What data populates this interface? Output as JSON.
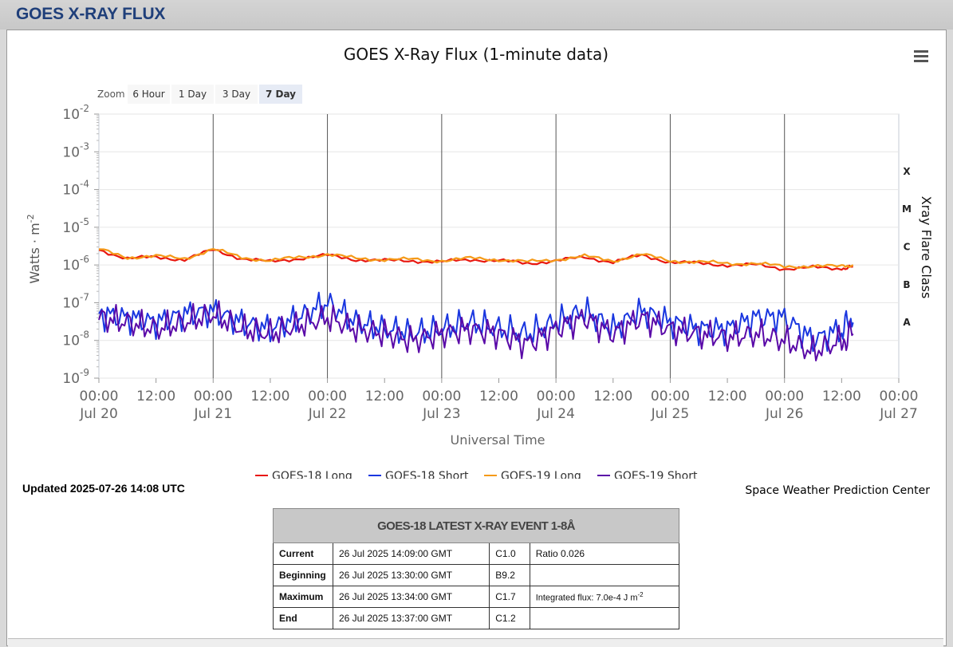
{
  "page": {
    "header_title": "GOES X-RAY FLUX"
  },
  "chart_data": {
    "type": "line",
    "title": "GOES X-Ray Flux (1-minute data)",
    "xlabel": "Universal Time",
    "ylabel": "Watts · m",
    "ylabel_sup": "-2",
    "right_label": "Xray Flare Class",
    "y_scale": "log",
    "ylim": [
      1e-09,
      0.01
    ],
    "xlim": [
      "2025-07-20 00:00",
      "2025-07-27 00:00"
    ],
    "y_ticks": [
      {
        "base": "10",
        "exp": "-2"
      },
      {
        "base": "10",
        "exp": "-3"
      },
      {
        "base": "10",
        "exp": "-4"
      },
      {
        "base": "10",
        "exp": "-5"
      },
      {
        "base": "10",
        "exp": "-6"
      },
      {
        "base": "10",
        "exp": "-7"
      },
      {
        "base": "10",
        "exp": "-8"
      },
      {
        "base": "10",
        "exp": "-9"
      }
    ],
    "x_ticks": [
      {
        "time": "00:00",
        "date": "Jul 20"
      },
      {
        "time": "12:00",
        "date": ""
      },
      {
        "time": "00:00",
        "date": "Jul 21"
      },
      {
        "time": "12:00",
        "date": ""
      },
      {
        "time": "00:00",
        "date": "Jul 22"
      },
      {
        "time": "12:00",
        "date": ""
      },
      {
        "time": "00:00",
        "date": "Jul 23"
      },
      {
        "time": "12:00",
        "date": ""
      },
      {
        "time": "00:00",
        "date": "Jul 24"
      },
      {
        "time": "12:00",
        "date": ""
      },
      {
        "time": "00:00",
        "date": "Jul 25"
      },
      {
        "time": "12:00",
        "date": ""
      },
      {
        "time": "00:00",
        "date": "Jul 26"
      },
      {
        "time": "12:00",
        "date": ""
      },
      {
        "time": "00:00",
        "date": "Jul 27"
      }
    ],
    "flare_classes": [
      "X",
      "M",
      "C",
      "B",
      "A"
    ],
    "grid": true,
    "legend_position": "bottom-center",
    "series": [
      {
        "name": "GOES-18 Long",
        "color": "#e8170f",
        "x_days": [
          0,
          0.25,
          0.5,
          0.75,
          1.0,
          1.25,
          1.5,
          1.75,
          2.0,
          2.25,
          2.5,
          2.75,
          3.0,
          3.25,
          3.5,
          3.75,
          4.0,
          4.25,
          4.5,
          4.75,
          5.0,
          5.25,
          5.5,
          5.75,
          6.0,
          6.25,
          6.5,
          6.6
        ],
        "values": [
          2.5e-06,
          1.5e-06,
          1.6e-06,
          1.4e-06,
          2.5e-06,
          1.5e-06,
          1.2e-06,
          1.5e-06,
          1.8e-06,
          1.4e-06,
          1.3e-06,
          1.3e-06,
          1.2e-06,
          1.4e-06,
          1.3e-06,
          1.1e-06,
          1.3e-06,
          1.6e-06,
          1.2e-06,
          1.8e-06,
          1.2e-06,
          1.1e-06,
          1e-06,
          1e-06,
          8e-07,
          8.5e-07,
          8e-07,
          9e-07
        ]
      },
      {
        "name": "GOES-18 Short",
        "color": "#1a37e0",
        "x_days": [
          0,
          0.25,
          0.5,
          0.75,
          1.0,
          1.25,
          1.5,
          1.75,
          2.0,
          2.25,
          2.5,
          2.75,
          3.0,
          3.25,
          3.5,
          3.75,
          4.0,
          4.25,
          4.5,
          4.75,
          5.0,
          5.25,
          5.5,
          5.75,
          6.0,
          6.25,
          6.5,
          6.6
        ],
        "values": [
          5e-08,
          4e-08,
          3e-08,
          5e-08,
          6e-08,
          3e-08,
          2e-08,
          4e-08,
          1e-07,
          3e-08,
          2e-08,
          1.5e-08,
          2e-08,
          3e-08,
          2e-08,
          1.5e-08,
          3e-08,
          6e-08,
          2e-08,
          6e-08,
          3e-08,
          2e-08,
          2e-08,
          4e-08,
          4e-08,
          1e-08,
          2e-08,
          3e-08
        ]
      },
      {
        "name": "GOES-19 Long",
        "color": "#f59a18",
        "x_days": [
          0,
          0.25,
          0.5,
          0.75,
          1.0,
          1.25,
          1.5,
          1.75,
          2.0,
          2.25,
          2.5,
          2.75,
          3.0,
          3.25,
          3.5,
          3.75,
          4.0,
          4.25,
          4.5,
          4.75,
          5.0,
          5.25,
          5.5,
          5.75,
          6.0,
          6.25,
          6.5,
          6.6
        ],
        "values": [
          2.6e-06,
          1.6e-06,
          1.7e-06,
          1.5e-06,
          2.6e-06,
          1.6e-06,
          1.3e-06,
          1.6e-06,
          1.9e-06,
          1.5e-06,
          1.4e-06,
          1.4e-06,
          1.3e-06,
          1.5e-06,
          1.4e-06,
          1.2e-06,
          1.4e-06,
          1.7e-06,
          1.3e-06,
          1.9e-06,
          1.3e-06,
          1.2e-06,
          1.1e-06,
          1.1e-06,
          9e-07,
          9.5e-07,
          9e-07,
          1e-06
        ]
      },
      {
        "name": "GOES-19 Short",
        "color": "#5a0aa8",
        "x_days": [
          0,
          0.25,
          0.5,
          0.75,
          1.0,
          1.25,
          1.5,
          1.75,
          2.0,
          2.25,
          2.5,
          2.75,
          3.0,
          3.25,
          3.5,
          3.75,
          4.0,
          4.25,
          4.5,
          4.75,
          5.0,
          5.25,
          5.5,
          5.75,
          6.0,
          6.25,
          6.5,
          6.6
        ],
        "values": [
          4e-08,
          3e-08,
          2e-08,
          3e-08,
          5e-08,
          2e-08,
          1.5e-08,
          2.5e-08,
          4e-08,
          2e-08,
          1.5e-08,
          1e-08,
          1.5e-08,
          2e-08,
          1.5e-08,
          8e-09,
          2e-08,
          4e-08,
          1.5e-08,
          4e-08,
          2e-08,
          1.5e-08,
          1.2e-08,
          1.5e-08,
          1e-08,
          5e-09,
          1e-08,
          1.5e-08
        ]
      }
    ]
  },
  "zoom": {
    "label": "Zoom",
    "options": [
      "6 Hour",
      "1 Day",
      "3 Day",
      "7 Day"
    ],
    "selected": "7 Day"
  },
  "updated": "Updated 2025-07-26 14:08 UTC",
  "credit": "Space Weather Prediction Center",
  "event_table": {
    "title": "GOES-18 LATEST X-RAY EVENT 1-8Å",
    "rows": [
      {
        "label": "Current",
        "time": "26 Jul 2025 14:09:00 GMT",
        "class": "C1.0",
        "extra": "Ratio 0.026"
      },
      {
        "label": "Beginning",
        "time": "26 Jul 2025 13:30:00 GMT",
        "class": "B9.2",
        "extra": ""
      },
      {
        "label": "Maximum",
        "time": "26 Jul 2025 13:34:00 GMT",
        "class": "C1.7",
        "extra": "Integrated flux: 7.0e-4 J m",
        "extra_sup": "-2"
      },
      {
        "label": "End",
        "time": "26 Jul 2025 13:37:00 GMT",
        "class": "C1.2",
        "extra": ""
      }
    ]
  }
}
